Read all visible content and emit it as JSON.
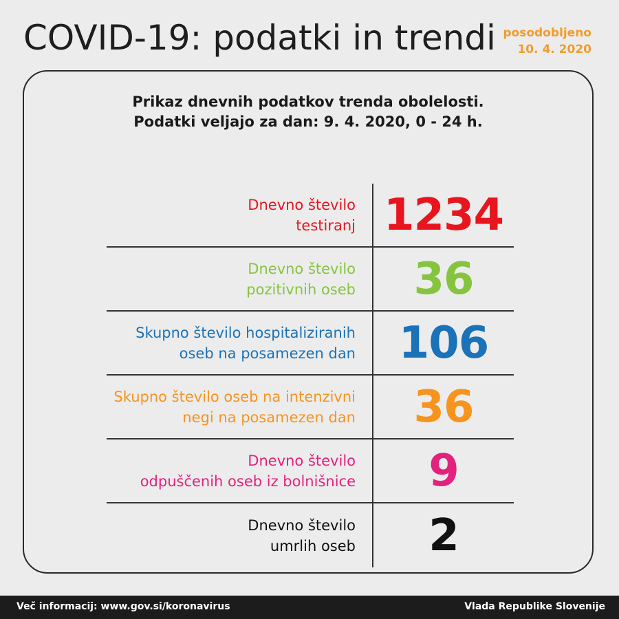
{
  "header": {
    "title": "COVID-19: podatki in trendi",
    "updated_label": "posodobljeno",
    "updated_date": "10. 4. 2020"
  },
  "panel": {
    "subtitle_line1": "Prikaz dnevnih podatkov trenda obolelosti.",
    "subtitle_line2": "Podatki veljajo za dan: 9. 4. 2020, 0 - 24 h.",
    "stats": [
      {
        "label_line1": "Dnevno število",
        "label_line2": "testiranj",
        "value": "1234",
        "color": "#e8151f"
      },
      {
        "label_line1": "Dnevno število",
        "label_line2": "pozitivnih oseb",
        "value": "36",
        "color": "#86c440"
      },
      {
        "label_line1": "Skupno število hospitaliziranih",
        "label_line2": "oseb na posamezen dan",
        "value": "106",
        "color": "#1a72b9"
      },
      {
        "label_line1": "Skupno število oseb na intenzivni",
        "label_line2": "negi na posamezen dan",
        "value": "36",
        "color": "#f7941d"
      },
      {
        "label_line1": "Dnevno število",
        "label_line2": "odpuščenih oseb iz bolnišnice",
        "value": "9",
        "color": "#e3227e"
      },
      {
        "label_line1": "Dnevno število",
        "label_line2": "umrlih oseb",
        "value": "2",
        "color": "#111111"
      }
    ]
  },
  "footer": {
    "info": "Več informacij: www.gov.si/koronavirus",
    "org": "Vlada Republike Slovenije"
  }
}
